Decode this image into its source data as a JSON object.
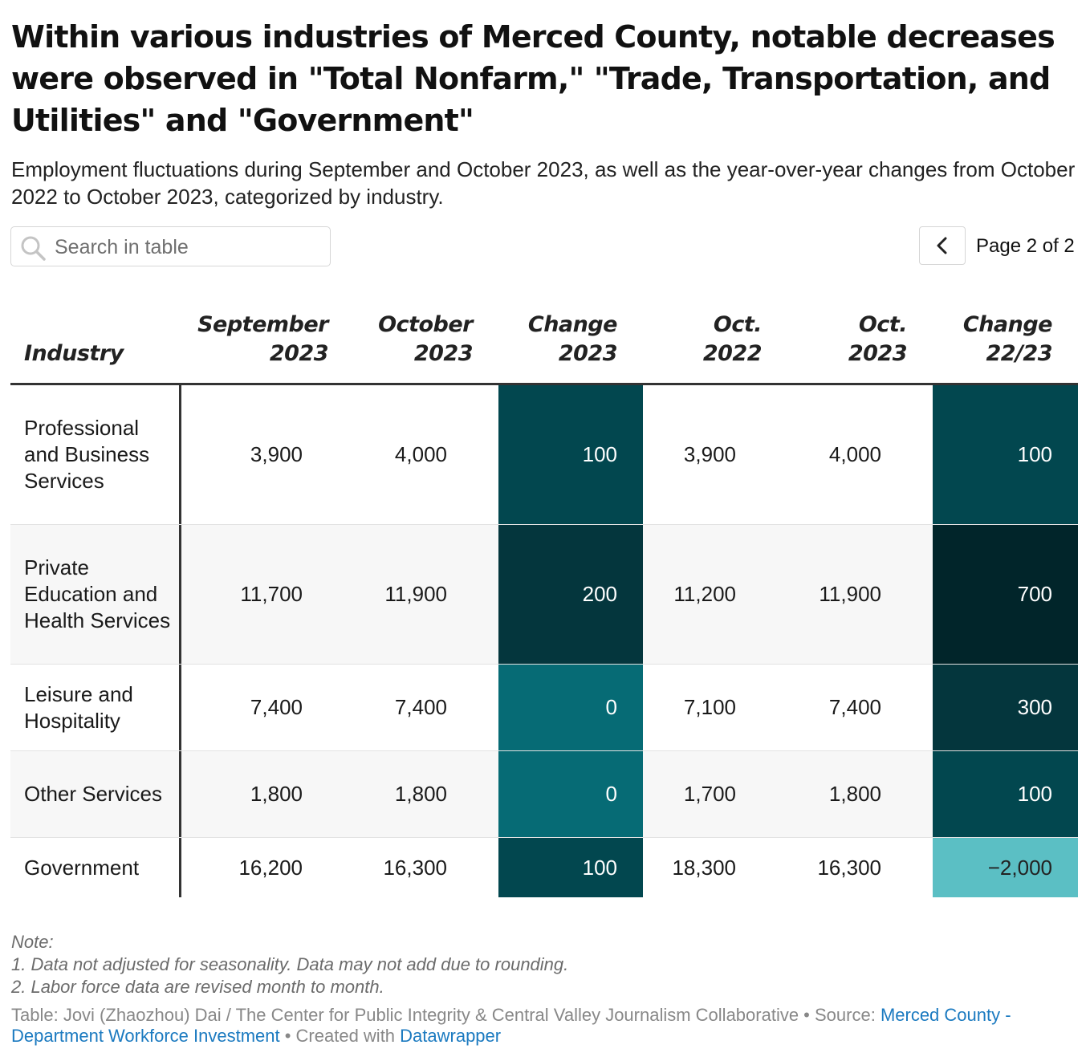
{
  "title": "Within various industries of Merced County, notable decreases were observed in \"Total Nonfarm,\" \"Trade, Transportation, and Utilities\" and \"Government\"",
  "subtitle": "Employment fluctuations during September and October 2023, as well as the year-over-year changes from October 2022 to October 2023, categorized by industry.",
  "search": {
    "placeholder": "Search in table",
    "icon": "search-icon"
  },
  "pagination": {
    "label": "Page 2 of 2",
    "prev_icon": "chevron-left-icon"
  },
  "chart_data": {
    "type": "table",
    "columns": [
      "Industry",
      "September\n2023",
      "October\n2023",
      "Change\n2023",
      "Oct.\n2022",
      "Oct.\n2023",
      "Change\n22/23"
    ],
    "rows": [
      {
        "industry": "Professional and Business Services",
        "sep_2023": "3,900",
        "oct_2023": "4,000",
        "change_2023": "100",
        "oct_2022": "3,900",
        "oct_2023b": "4,000",
        "change_22_23": "100"
      },
      {
        "industry": "Private Education and Health Services",
        "sep_2023": "11,700",
        "oct_2023": "11,900",
        "change_2023": "200",
        "oct_2022": "11,200",
        "oct_2023b": "11,900",
        "change_22_23": "700"
      },
      {
        "industry": "Leisure and Hospitality",
        "sep_2023": "7,400",
        "oct_2023": "7,400",
        "change_2023": "0",
        "oct_2022": "7,100",
        "oct_2023b": "7,400",
        "change_22_23": "300"
      },
      {
        "industry": "Other Services",
        "sep_2023": "1,800",
        "oct_2023": "1,800",
        "change_2023": "0",
        "oct_2022": "1,700",
        "oct_2023b": "1,800",
        "change_22_23": "100"
      },
      {
        "industry": "Government",
        "sep_2023": "16,200",
        "oct_2023": "16,300",
        "change_2023": "100",
        "oct_2022": "18,300",
        "oct_2023b": "16,300",
        "change_22_23": "−2,000"
      }
    ],
    "heat_colors": {
      "change_2023": [
        "#02474f",
        "#04363d",
        "#066b75",
        "#066b75",
        "#02474f"
      ],
      "change_22_23": [
        "#02474f",
        "#01252a",
        "#04363d",
        "#02474f",
        "#5bbfc4"
      ]
    }
  },
  "notes": {
    "heading": "Note:",
    "items": [
      "1. Data not adjusted for seasonality. Data may not add due to rounding.",
      "2. Labor force data are revised month to month."
    ]
  },
  "credits": {
    "prefix": "Table: Jovi (Zhaozhou) Dai / The Center for Public Integrity & Central Valley Journalism Collaborative • Source: ",
    "source_link": "Merced County - Department Workforce Investment",
    "middle": " • Created with ",
    "tool_link": "Datawrapper"
  }
}
